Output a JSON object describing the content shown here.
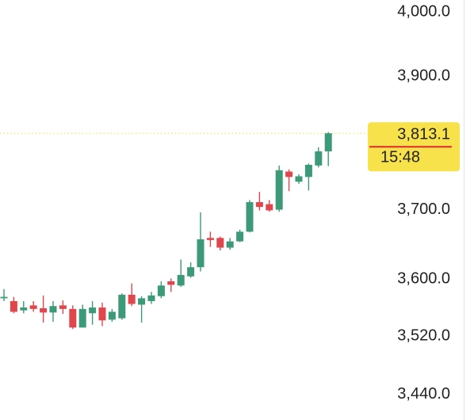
{
  "chart_data": {
    "type": "candlestick",
    "log_scale": true,
    "up_color": "#3c9a78",
    "down_color": "#e0474c",
    "open": [
      3573,
      3569,
      3556,
      3563,
      3559,
      3553,
      3563,
      3558,
      3532,
      3552,
      3560,
      3543,
      3545,
      3578,
      3564,
      3569,
      3576,
      3597,
      3591,
      3604,
      3617,
      3659,
      3659,
      3645,
      3654,
      3668,
      3711,
      3708,
      3700,
      3756,
      3741,
      3748,
      3765,
      3786
    ],
    "high": [
      3586,
      3575,
      3569,
      3569,
      3577,
      3569,
      3570,
      3563,
      3564,
      3569,
      3567,
      3558,
      3580,
      3594,
      3576,
      3582,
      3597,
      3601,
      3628,
      3624,
      3696,
      3668,
      3661,
      3659,
      3671,
      3714,
      3726,
      3714,
      3765,
      3759,
      3752,
      3768,
      3792,
      3815
    ],
    "low": [
      3569,
      3552,
      3552,
      3554,
      3539,
      3540,
      3551,
      3530,
      3532,
      3536,
      3534,
      3540,
      3543,
      3562,
      3539,
      3565,
      3573,
      3582,
      3589,
      3602,
      3611,
      3646,
      3641,
      3642,
      3653,
      3667,
      3699,
      3697,
      3697,
      3727,
      3738,
      3728,
      3762,
      3764
    ],
    "close": [
      3575,
      3554,
      3560,
      3558,
      3553,
      3562,
      3558,
      3532,
      3558,
      3560,
      3542,
      3554,
      3578,
      3565,
      3573,
      3577,
      3591,
      3592,
      3606,
      3617,
      3657,
      3656,
      3645,
      3654,
      3668,
      3711,
      3704,
      3699,
      3758,
      3748,
      3749,
      3766,
      3786,
      3813.1
    ],
    "ylim": [
      3405.6,
      4018.8
    ],
    "yticks": [
      {
        "value": 3440,
        "label": "3,440.0"
      },
      {
        "value": 3520,
        "label": "3,520.0"
      },
      {
        "value": 3600,
        "label": "3,600.0"
      },
      {
        "value": 3700,
        "label": "3,700.0"
      },
      {
        "value": 3900,
        "label": "3,900.0"
      },
      {
        "value": 4000,
        "label": "4,000.0"
      }
    ],
    "last_price": {
      "value": 3813.1,
      "label": "3,813.1"
    },
    "countdown": "15:48",
    "last_price_color": "#f7e24b"
  }
}
